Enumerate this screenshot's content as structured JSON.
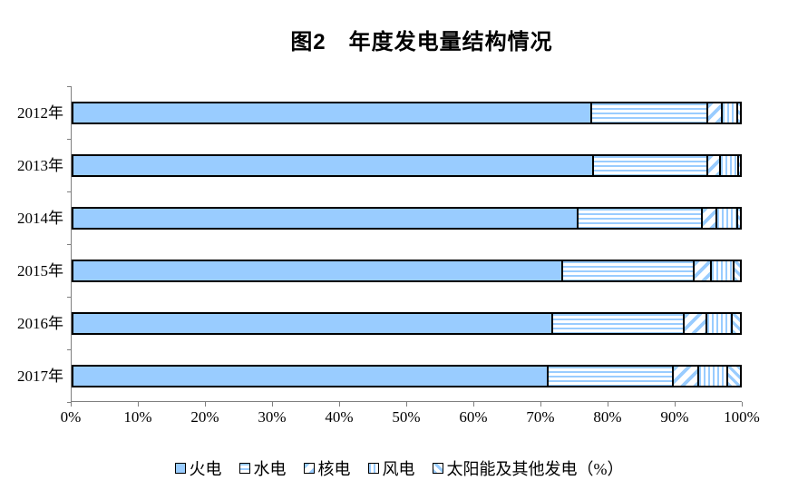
{
  "title": "图2　年度发电量结构情况",
  "colors": {
    "bar_fill": "#99CCFF",
    "bar_border": "#000000",
    "axis": "#7f7f7f",
    "background": "#ffffff"
  },
  "chart_data": {
    "type": "bar",
    "orientation": "horizontal",
    "stacked": true,
    "title": "图2　年度发电量结构情况",
    "unit": "%",
    "categories": [
      "2012年",
      "2013年",
      "2014年",
      "2015年",
      "2016年",
      "2017年"
    ],
    "series": [
      {
        "key": "thermal",
        "name": "火电",
        "pattern": "solid",
        "values": [
          77.7,
          77.9,
          75.6,
          73.3,
          71.8,
          71.2
        ]
      },
      {
        "key": "hydro",
        "name": "水电",
        "pattern": "horizontal-stripes",
        "values": [
          17.3,
          17.1,
          18.6,
          19.6,
          19.7,
          18.6
        ]
      },
      {
        "key": "nuclear",
        "name": "核电",
        "pattern": "diagonal-stripes-wide",
        "values": [
          2.1,
          1.9,
          2.1,
          2.7,
          3.3,
          3.8
        ]
      },
      {
        "key": "wind",
        "name": "风电",
        "pattern": "vertical-stripes",
        "values": [
          2.4,
          2.7,
          3.2,
          3.3,
          3.8,
          4.4
        ]
      },
      {
        "key": "solar-other",
        "name": "太阳能及其他发电（%）",
        "pattern": "diagonal-stripes-thin",
        "values": [
          0.5,
          0.4,
          0.5,
          1.1,
          1.4,
          2.0
        ]
      }
    ],
    "x_ticks": [
      "0%",
      "10%",
      "20%",
      "30%",
      "40%",
      "50%",
      "60%",
      "70%",
      "80%",
      "90%",
      "100%"
    ],
    "xlim": [
      0,
      100
    ],
    "grid": false,
    "legend_position": "bottom"
  }
}
